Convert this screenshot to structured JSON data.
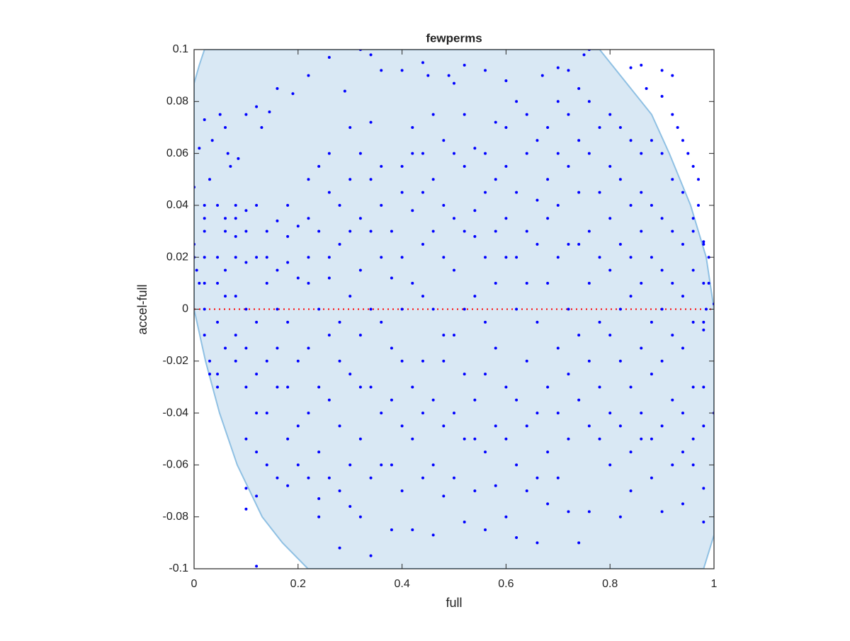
{
  "chart_data": {
    "type": "scatter",
    "title": "fewperms",
    "xlabel": "full",
    "ylabel": "accel-full",
    "xlim": [
      0,
      1
    ],
    "ylim": [
      -0.1,
      0.1
    ],
    "xticks": [
      0,
      0.2,
      0.4,
      0.6,
      0.8,
      1
    ],
    "yticks": [
      -0.1,
      -0.08,
      -0.06,
      -0.04,
      -0.02,
      0,
      0.02,
      0.04,
      0.06,
      0.08,
      0.1
    ],
    "reference_y": 0,
    "reference_color": "#ff0000",
    "region": {
      "color": "#d9e8f4",
      "edge": "#8fc0e3",
      "x": [
        0,
        0.01,
        0.02,
        0.78,
        0.832,
        0.88,
        0.914,
        0.955,
        0.985,
        1,
        1,
        0.98,
        0.219,
        0.17,
        0.131,
        0.083,
        0.049,
        0.022,
        0
      ],
      "y": [
        0.087,
        0.094,
        0.1,
        0.1,
        0.087,
        0.075,
        0.06,
        0.04,
        0.02,
        0,
        -0.087,
        -0.1,
        -0.1,
        -0.09,
        -0.08,
        -0.06,
        -0.04,
        -0.02,
        0
      ]
    },
    "series": [
      {
        "color": "#0000ff",
        "x": [
          0,
          0,
          0.005,
          0.01,
          0,
          0.01,
          0.02,
          0.035,
          0.05,
          0.06,
          0.065,
          0.07,
          0.085,
          0.1,
          0.12,
          0.13,
          0.145,
          0.16,
          0.19,
          0.22,
          0.29,
          0.26,
          0.32,
          0.34,
          0.36,
          0.4,
          0.44,
          0.45,
          0.49,
          0.5,
          0.52,
          0.56,
          0.6,
          0.67,
          0.7,
          0.72,
          0.75,
          0.76,
          0.84,
          0.86,
          0.9,
          0.92,
          0.87,
          0.9,
          0.92,
          0.93,
          0.94,
          0.95,
          0.96,
          0.97,
          0.97,
          0.96,
          0.98,
          0.99,
          0.99,
          0.985,
          0.98,
          1,
          0.02,
          0.02,
          0.02,
          0.02,
          0.02,
          0.02,
          0.02,
          0.03,
          0.03,
          0.03,
          0.045,
          0.045,
          0.045,
          0.045,
          0.045,
          0.045,
          0.06,
          0.06,
          0.06,
          0.06,
          0.06,
          0.08,
          0.08,
          0.08,
          0.08,
          0.08,
          0.08,
          0.08,
          0.1,
          0.1,
          0.1,
          0.1,
          0.1,
          0.1,
          0.1,
          0.1,
          0.1,
          0.12,
          0.12,
          0.12,
          0.12,
          0.12,
          0.12,
          0.12,
          0.12,
          0.14,
          0.14,
          0.14,
          0.14,
          0.14,
          0.14,
          0.16,
          0.16,
          0.16,
          0.16,
          0.16,
          0.16,
          0.18,
          0.18,
          0.18,
          0.18,
          0.18,
          0.18,
          0.18,
          0.2,
          0.2,
          0.2,
          0.2,
          0.2,
          0.22,
          0.22,
          0.22,
          0.22,
          0.22,
          0.22,
          0.22,
          0.24,
          0.24,
          0.24,
          0.24,
          0.24,
          0.24,
          0.24,
          0.26,
          0.26,
          0.26,
          0.26,
          0.26,
          0.26,
          0.26,
          0.28,
          0.28,
          0.28,
          0.28,
          0.28,
          0.28,
          0.28,
          0.3,
          0.3,
          0.3,
          0.3,
          0.3,
          0.3,
          0.3,
          0.32,
          0.32,
          0.32,
          0.32,
          0.32,
          0.32,
          0.32,
          0.34,
          0.34,
          0.34,
          0.34,
          0.34,
          0.34,
          0.34,
          0.36,
          0.36,
          0.36,
          0.36,
          0.36,
          0.36,
          0.38,
          0.38,
          0.38,
          0.38,
          0.38,
          0.38,
          0.4,
          0.4,
          0.4,
          0.4,
          0.4,
          0.4,
          0.4,
          0.42,
          0.42,
          0.42,
          0.42,
          0.42,
          0.42,
          0.42,
          0.44,
          0.44,
          0.44,
          0.44,
          0.44,
          0.44,
          0.44,
          0.46,
          0.46,
          0.46,
          0.46,
          0.46,
          0.46,
          0.46,
          0.48,
          0.48,
          0.48,
          0.48,
          0.48,
          0.48,
          0.48,
          0.5,
          0.5,
          0.5,
          0.5,
          0.5,
          0.5,
          0.52,
          0.52,
          0.52,
          0.52,
          0.52,
          0.52,
          0.52,
          0.54,
          0.54,
          0.54,
          0.54,
          0.54,
          0.54,
          0.54,
          0.56,
          0.56,
          0.56,
          0.56,
          0.56,
          0.56,
          0.56,
          0.58,
          0.58,
          0.58,
          0.58,
          0.58,
          0.58,
          0.58,
          0.6,
          0.6,
          0.6,
          0.6,
          0.6,
          0.6,
          0.6,
          0.62,
          0.62,
          0.62,
          0.62,
          0.62,
          0.62,
          0.62,
          0.64,
          0.64,
          0.64,
          0.64,
          0.64,
          0.64,
          0.64,
          0.66,
          0.66,
          0.66,
          0.66,
          0.66,
          0.66,
          0.66,
          0.68,
          0.68,
          0.68,
          0.68,
          0.68,
          0.68,
          0.68,
          0.7,
          0.7,
          0.7,
          0.7,
          0.7,
          0.7,
          0.7,
          0.72,
          0.72,
          0.72,
          0.72,
          0.72,
          0.72,
          0.72,
          0.74,
          0.74,
          0.74,
          0.74,
          0.74,
          0.74,
          0.74,
          0.76,
          0.76,
          0.76,
          0.76,
          0.76,
          0.76,
          0.76,
          0.78,
          0.78,
          0.78,
          0.78,
          0.78,
          0.78,
          0.8,
          0.8,
          0.8,
          0.8,
          0.8,
          0.8,
          0.8,
          0.82,
          0.82,
          0.82,
          0.82,
          0.82,
          0.82,
          0.82,
          0.84,
          0.84,
          0.84,
          0.84,
          0.84,
          0.84,
          0.84,
          0.86,
          0.86,
          0.86,
          0.86,
          0.86,
          0.86,
          0.86,
          0.88,
          0.88,
          0.88,
          0.88,
          0.88,
          0.88,
          0.88,
          0.9,
          0.9,
          0.9,
          0.9,
          0.9,
          0.9,
          0.9,
          0.92,
          0.92,
          0.92,
          0.92,
          0.92,
          0.92,
          0.94,
          0.94,
          0.94,
          0.94,
          0.94,
          0.94,
          0.94,
          0.96,
          0.96,
          0.96,
          0.96,
          0.96,
          0.96,
          0.98,
          0.98,
          0.98,
          0.98,
          0.98,
          0.98,
          0.98,
          1
        ],
        "values": [
          0.025,
          0.02,
          0.015,
          0.01,
          0.047,
          0.062,
          0.073,
          0.065,
          0.075,
          0.07,
          0.06,
          0.055,
          0.058,
          0.075,
          0.078,
          0.07,
          0.076,
          0.085,
          0.083,
          0.09,
          0.084,
          0.097,
          0.1,
          0.098,
          0.092,
          0.092,
          0.095,
          0.09,
          0.09,
          0.087,
          0.094,
          0.092,
          0.088,
          0.09,
          0.093,
          0.092,
          0.098,
          0.1,
          0.093,
          0.094,
          0.092,
          0.09,
          0.085,
          0.082,
          0.075,
          0.07,
          0.065,
          0.06,
          0.055,
          0.05,
          0.04,
          0.03,
          0.026,
          0.02,
          0.01,
          0,
          -0.005,
          0.002,
          0.04,
          0.035,
          0.03,
          0.02,
          0.01,
          0,
          -0.01,
          -0.02,
          -0.025,
          0.05,
          0.04,
          0.02,
          0.01,
          -0.005,
          -0.025,
          -0.03,
          0.035,
          0.03,
          0.015,
          0.005,
          -0.015,
          0.04,
          0.035,
          0.028,
          0.02,
          0.005,
          -0.01,
          -0.02,
          0.038,
          0.03,
          0.018,
          0,
          -0.015,
          -0.03,
          -0.05,
          -0.069,
          -0.077,
          0.04,
          0.02,
          -0.005,
          -0.025,
          -0.04,
          -0.055,
          -0.072,
          -0.099,
          0.03,
          0.02,
          0.01,
          -0.02,
          -0.04,
          -0.06,
          0.034,
          0.015,
          0,
          -0.015,
          -0.03,
          -0.065,
          0.04,
          0.028,
          0.018,
          -0.005,
          -0.03,
          -0.05,
          -0.068,
          0.032,
          0.012,
          -0.02,
          -0.045,
          -0.06,
          0.05,
          0.035,
          0.02,
          0.01,
          -0.015,
          -0.04,
          -0.065,
          0.055,
          0.03,
          0,
          -0.03,
          -0.055,
          -0.073,
          -0.08,
          0.06,
          0.045,
          0.02,
          0.012,
          -0.01,
          -0.035,
          -0.065,
          0.04,
          0.025,
          -0.005,
          -0.02,
          -0.045,
          -0.07,
          -0.092,
          0.07,
          0.05,
          0.03,
          0.005,
          -0.025,
          -0.06,
          -0.076,
          0.06,
          0.035,
          0.015,
          -0.01,
          -0.03,
          -0.05,
          -0.08,
          0.072,
          0.05,
          0.03,
          0,
          -0.03,
          -0.065,
          -0.095,
          0.055,
          0.04,
          0.02,
          -0.005,
          -0.04,
          -0.06,
          0.03,
          0.012,
          -0.015,
          -0.035,
          -0.06,
          -0.085,
          0.055,
          0.045,
          0.02,
          0,
          -0.02,
          -0.045,
          -0.07,
          0.07,
          0.06,
          0.038,
          0.01,
          -0.03,
          -0.05,
          -0.085,
          0.06,
          0.045,
          0.025,
          0.005,
          -0.02,
          -0.04,
          -0.065,
          0.075,
          0.05,
          0.03,
          0,
          -0.035,
          -0.06,
          -0.087,
          0.065,
          0.04,
          0.02,
          -0.01,
          -0.02,
          -0.045,
          -0.072,
          0.06,
          0.035,
          0.015,
          -0.01,
          -0.04,
          -0.065,
          0.075,
          0.055,
          0.03,
          0,
          -0.025,
          -0.05,
          -0.082,
          0.062,
          0.038,
          0.028,
          0.005,
          -0.035,
          -0.05,
          -0.07,
          0.06,
          0.045,
          0.02,
          -0.005,
          -0.025,
          -0.055,
          -0.085,
          0.072,
          0.05,
          0.03,
          0.01,
          -0.015,
          -0.045,
          -0.068,
          0.07,
          0.055,
          0.035,
          0.02,
          -0.03,
          -0.05,
          -0.08,
          0.08,
          0.045,
          0.02,
          0,
          -0.035,
          -0.06,
          -0.088,
          0.075,
          0.06,
          0.03,
          0.01,
          -0.02,
          -0.045,
          -0.07,
          0.065,
          0.042,
          0.025,
          -0.005,
          -0.04,
          -0.065,
          -0.09,
          0.07,
          0.05,
          0.035,
          0.01,
          -0.03,
          -0.055,
          -0.075,
          0.08,
          0.06,
          0.04,
          0.02,
          -0.015,
          -0.04,
          -0.065,
          0.075,
          0.055,
          0.025,
          0,
          -0.025,
          -0.05,
          -0.078,
          0.085,
          0.065,
          0.045,
          0.025,
          -0.01,
          -0.035,
          -0.09,
          0.08,
          0.06,
          0.03,
          0.01,
          -0.02,
          -0.045,
          -0.078,
          0.07,
          0.045,
          0.02,
          -0.005,
          -0.03,
          -0.05,
          0.075,
          0.055,
          0.035,
          0.015,
          -0.01,
          -0.04,
          -0.06,
          0.07,
          0.05,
          0.025,
          0,
          -0.02,
          -0.045,
          -0.08,
          0.065,
          0.04,
          0.02,
          0.005,
          -0.03,
          -0.055,
          -0.07,
          0.06,
          0.045,
          0.03,
          0.01,
          -0.015,
          -0.04,
          -0.05,
          0.065,
          0.04,
          0.02,
          -0.005,
          -0.025,
          -0.05,
          -0.065,
          0.06,
          0.035,
          0.015,
          0,
          -0.02,
          -0.045,
          -0.078,
          0.05,
          0.03,
          0.01,
          -0.01,
          -0.035,
          -0.06,
          0.045,
          0.025,
          0.005,
          -0.015,
          -0.04,
          -0.055,
          -0.075,
          0.035,
          0.015,
          -0.005,
          -0.03,
          -0.05,
          -0.06,
          0.025,
          0.01,
          -0.008,
          -0.03,
          -0.045,
          -0.069,
          -0.082,
          -0.04
        ]
      }
    ]
  }
}
